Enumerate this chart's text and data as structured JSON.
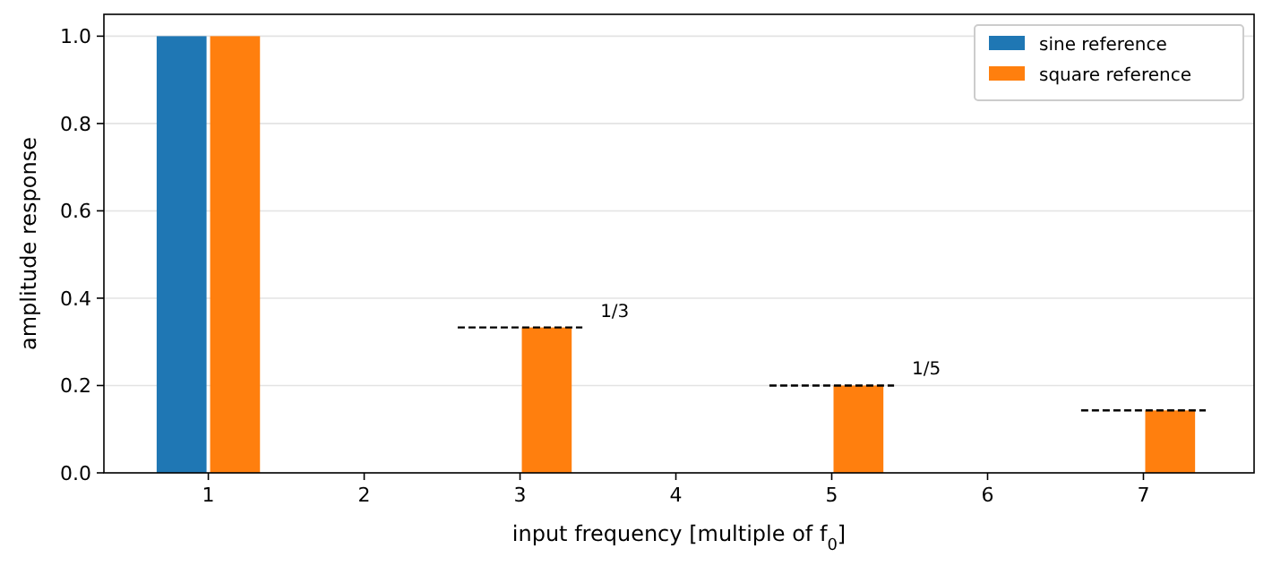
{
  "chart_data": {
    "type": "bar",
    "xlabel": "input frequency [multiple of f$_{0}$]",
    "ylabel": "amplitude response",
    "xlim": [
      0.33,
      7.71
    ],
    "xticks": [
      1,
      2,
      3,
      4,
      5,
      6,
      7
    ],
    "series": [
      {
        "name": "sine reference",
        "color": "#1f77b4",
        "x": [
          1
        ],
        "values": [
          1
        ]
      },
      {
        "name": "square reference",
        "color": "#ff7f0e",
        "x": [
          1,
          3,
          5,
          7
        ],
        "values": [
          1,
          0.333,
          0.2,
          0.143
        ]
      },
      {
        "type": "line",
        "color": "#000000",
        "line_style": "dashed",
        "x": [
          2.6,
          3.4
        ],
        "values": [
          0.333,
          0.333
        ]
      },
      {
        "type": "line",
        "color": "#000000",
        "line_style": "dashed",
        "x": [
          4.6,
          5.4
        ],
        "values": [
          0.2,
          0.2
        ]
      },
      {
        "type": "line",
        "color": "#000000",
        "line_style": "dashed",
        "x": [
          6.6,
          7.4
        ],
        "values": [
          0.143,
          0.143
        ]
      }
    ],
    "annotations": [
      {
        "text": "1/3",
        "x": 3.4,
        "y": 0.333
      },
      {
        "text": "1/5",
        "x": 5.4,
        "y": 0.2
      }
    ],
    "ylim": [
      0,
      1.05
    ],
    "yticks": [
      {
        "value": 0,
        "label": "0.0"
      },
      {
        "value": 0.2,
        "label": "0.2"
      },
      {
        "value": 0.4,
        "label": "0.4"
      },
      {
        "value": 0.6,
        "label": "0.6"
      },
      {
        "value": 0.8,
        "label": "0.8"
      },
      {
        "value": 1,
        "label": "1.0"
      }
    ],
    "grid": "y",
    "legend": "top right"
  }
}
